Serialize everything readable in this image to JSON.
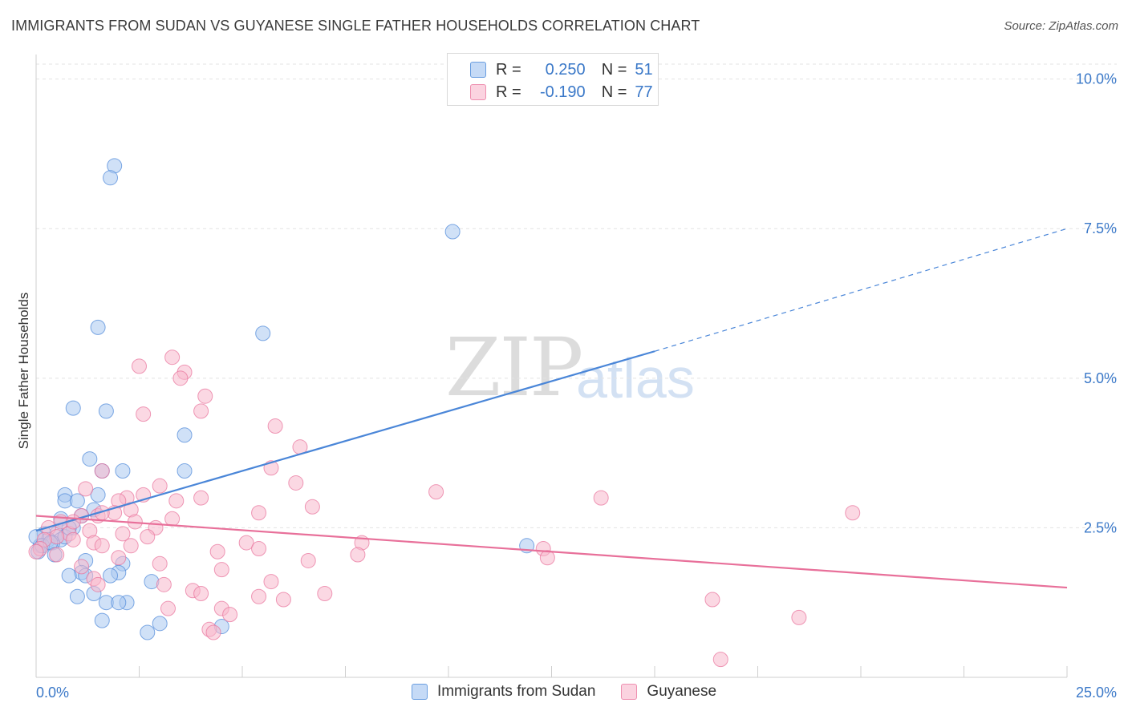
{
  "header": {
    "title": "IMMIGRANTS FROM SUDAN VS GUYANESE SINGLE FATHER HOUSEHOLDS CORRELATION CHART",
    "source": "Source: ZipAtlas.com"
  },
  "watermark": {
    "zip": "ZIP",
    "atlas": "atlas"
  },
  "legend": {
    "rows": [
      {
        "r_label": "R =",
        "r_value": "0.250",
        "n_label": "N =",
        "n_value": "51",
        "color": "#a9c8f0"
      },
      {
        "r_label": "R =",
        "r_value": "-0.190",
        "n_label": "N =",
        "n_value": "77",
        "color": "#f7b8cc"
      }
    ]
  },
  "bottom_legend": {
    "items": [
      {
        "label": "Immigrants from Sudan",
        "color": "#a9c8f0"
      },
      {
        "label": "Guyanese",
        "color": "#f7b8cc"
      }
    ]
  },
  "chart_data": {
    "type": "scatter",
    "title": "IMMIGRANTS FROM SUDAN VS GUYANESE SINGLE FATHER HOUSEHOLDS CORRELATION CHART",
    "ylabel": "Single Father Households",
    "xlabel": "",
    "xlim": [
      0,
      25
    ],
    "ylim": [
      0,
      10.25
    ],
    "x_tick_labels": [
      "0.0%",
      "25.0%"
    ],
    "y_ticks": [
      2.5,
      5.0,
      7.5,
      10.0
    ],
    "y_tick_labels": [
      "2.5%",
      "5.0%",
      "7.5%",
      "10.0%"
    ],
    "grid": true,
    "legend_position": "top-center",
    "series": [
      {
        "name": "Immigrants from Sudan",
        "color": "#4a86d8",
        "fill": "#a9c8f0",
        "trend": {
          "x0": 0.0,
          "y0": 2.45,
          "x1": 15.0,
          "y1": 5.45,
          "dash_to_x": 25.0,
          "dash_to_y": 7.5
        },
        "points": [
          [
            1.9,
            8.55
          ],
          [
            1.8,
            8.35
          ],
          [
            10.1,
            7.45
          ],
          [
            1.5,
            5.85
          ],
          [
            5.5,
            5.75
          ],
          [
            0.9,
            4.5
          ],
          [
            1.7,
            4.45
          ],
          [
            3.6,
            4.05
          ],
          [
            1.3,
            3.65
          ],
          [
            1.6,
            3.45
          ],
          [
            2.1,
            3.45
          ],
          [
            3.6,
            3.45
          ],
          [
            0.7,
            3.05
          ],
          [
            1.5,
            3.05
          ],
          [
            0.7,
            2.95
          ],
          [
            1.0,
            2.95
          ],
          [
            1.4,
            2.8
          ],
          [
            0.6,
            2.65
          ],
          [
            1.1,
            2.7
          ],
          [
            0.2,
            2.4
          ],
          [
            0.5,
            2.4
          ],
          [
            0.9,
            2.5
          ],
          [
            0.3,
            2.3
          ],
          [
            0.6,
            2.3
          ],
          [
            0.1,
            2.2
          ],
          [
            0.4,
            2.25
          ],
          [
            0.0,
            2.35
          ],
          [
            0.05,
            2.1
          ],
          [
            0.15,
            2.2
          ],
          [
            0.35,
            2.25
          ],
          [
            0.45,
            2.05
          ],
          [
            0.7,
            2.35
          ],
          [
            0.8,
            2.5
          ],
          [
            1.2,
            1.95
          ],
          [
            2.1,
            1.9
          ],
          [
            2.0,
            1.75
          ],
          [
            1.8,
            1.7
          ],
          [
            1.1,
            1.75
          ],
          [
            0.8,
            1.7
          ],
          [
            1.2,
            1.7
          ],
          [
            2.8,
            1.6
          ],
          [
            1.4,
            1.4
          ],
          [
            1.0,
            1.35
          ],
          [
            1.7,
            1.25
          ],
          [
            2.2,
            1.25
          ],
          [
            2.0,
            1.25
          ],
          [
            1.6,
            0.95
          ],
          [
            3.0,
            0.9
          ],
          [
            4.5,
            0.85
          ],
          [
            2.7,
            0.75
          ],
          [
            11.9,
            2.2
          ]
        ]
      },
      {
        "name": "Guyanese",
        "color": "#e8709a",
        "fill": "#f7b8cc",
        "trend": {
          "x0": 0.0,
          "y0": 2.7,
          "x1": 25.0,
          "y1": 1.5
        },
        "points": [
          [
            3.3,
            5.35
          ],
          [
            2.5,
            5.2
          ],
          [
            3.6,
            5.1
          ],
          [
            3.5,
            5.0
          ],
          [
            4.1,
            4.7
          ],
          [
            4.0,
            4.45
          ],
          [
            2.6,
            4.4
          ],
          [
            5.8,
            4.2
          ],
          [
            6.4,
            3.85
          ],
          [
            5.7,
            3.5
          ],
          [
            1.6,
            3.45
          ],
          [
            6.3,
            3.25
          ],
          [
            3.0,
            3.2
          ],
          [
            1.2,
            3.15
          ],
          [
            9.7,
            3.1
          ],
          [
            13.7,
            3.0
          ],
          [
            2.6,
            3.05
          ],
          [
            2.2,
            3.0
          ],
          [
            2.0,
            2.95
          ],
          [
            3.4,
            2.95
          ],
          [
            4.0,
            3.0
          ],
          [
            2.3,
            2.8
          ],
          [
            6.7,
            2.85
          ],
          [
            5.4,
            2.75
          ],
          [
            1.9,
            2.75
          ],
          [
            1.5,
            2.7
          ],
          [
            1.1,
            2.7
          ],
          [
            3.3,
            2.65
          ],
          [
            0.6,
            2.6
          ],
          [
            0.3,
            2.5
          ],
          [
            2.9,
            2.5
          ],
          [
            1.3,
            2.45
          ],
          [
            2.1,
            2.4
          ],
          [
            0.8,
            2.4
          ],
          [
            0.5,
            2.35
          ],
          [
            0.2,
            2.3
          ],
          [
            0.9,
            2.3
          ],
          [
            1.4,
            2.25
          ],
          [
            2.7,
            2.35
          ],
          [
            5.1,
            2.25
          ],
          [
            7.9,
            2.25
          ],
          [
            1.6,
            2.2
          ],
          [
            2.3,
            2.2
          ],
          [
            0.1,
            2.15
          ],
          [
            5.4,
            2.15
          ],
          [
            4.4,
            2.1
          ],
          [
            0.0,
            2.1
          ],
          [
            12.3,
            2.15
          ],
          [
            7.8,
            2.05
          ],
          [
            0.5,
            2.05
          ],
          [
            12.4,
            2.0
          ],
          [
            2.0,
            2.0
          ],
          [
            6.6,
            1.95
          ],
          [
            3.0,
            1.9
          ],
          [
            1.1,
            1.85
          ],
          [
            4.5,
            1.8
          ],
          [
            19.8,
            2.75
          ],
          [
            1.4,
            1.65
          ],
          [
            5.7,
            1.6
          ],
          [
            3.1,
            1.55
          ],
          [
            1.5,
            1.55
          ],
          [
            3.8,
            1.45
          ],
          [
            4.0,
            1.4
          ],
          [
            7.0,
            1.4
          ],
          [
            5.4,
            1.35
          ],
          [
            6.0,
            1.3
          ],
          [
            16.4,
            1.3
          ],
          [
            3.2,
            1.15
          ],
          [
            4.5,
            1.15
          ],
          [
            4.7,
            1.05
          ],
          [
            18.5,
            1.0
          ],
          [
            4.2,
            0.8
          ],
          [
            4.3,
            0.75
          ],
          [
            16.6,
            0.3
          ],
          [
            1.6,
            2.75
          ],
          [
            0.9,
            2.6
          ],
          [
            2.4,
            2.6
          ]
        ]
      }
    ]
  }
}
